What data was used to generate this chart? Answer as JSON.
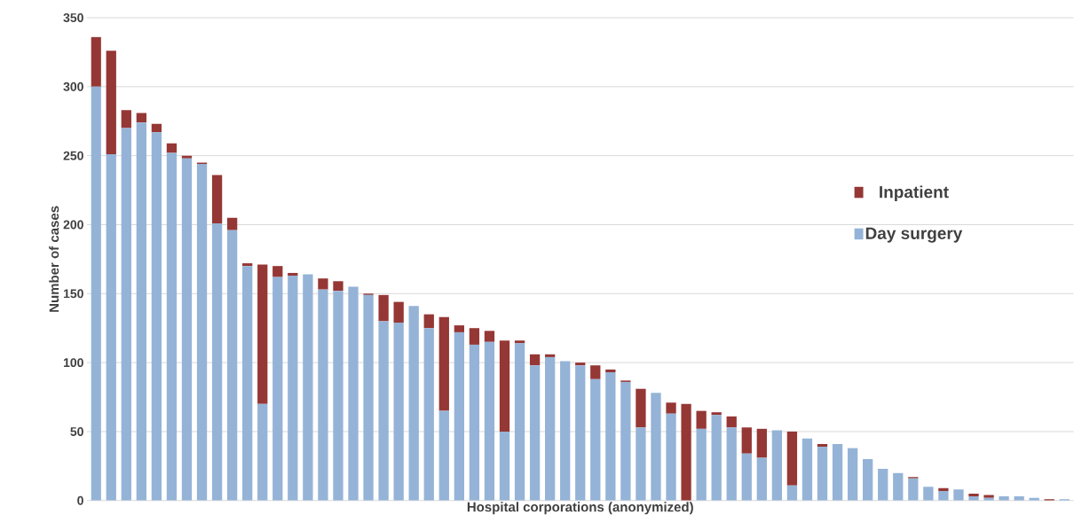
{
  "chart_data": {
    "type": "bar",
    "stacked": true,
    "xlabel": "Hospital corporations (anonymized)",
    "ylabel": "Number of cases",
    "categories": [
      null,
      null,
      null,
      null,
      null,
      null,
      null,
      null,
      null,
      null,
      null,
      null,
      null,
      null,
      null,
      null,
      null,
      null,
      null,
      null,
      null,
      null,
      null,
      null,
      null,
      null,
      null,
      null,
      null,
      null,
      null,
      null,
      null,
      null,
      null,
      null,
      null,
      null,
      null,
      null,
      null,
      null,
      null,
      null,
      null,
      null,
      null,
      null,
      null,
      null,
      null,
      null,
      null,
      null,
      null,
      null,
      null,
      null,
      null,
      null,
      null,
      null,
      null,
      null,
      null
    ],
    "series": [
      {
        "name": "Day surgery",
        "color": "#95b3d7",
        "values": [
          300,
          251,
          270,
          274,
          267,
          252,
          248,
          244,
          201,
          196,
          170,
          70,
          162,
          163,
          164,
          153,
          152,
          155,
          149,
          130,
          129,
          141,
          125,
          65,
          122,
          113,
          115,
          50,
          114,
          98,
          104,
          101,
          98,
          88,
          93,
          86,
          53,
          78,
          63,
          0,
          52,
          62,
          53,
          34,
          31,
          51,
          11,
          45,
          39,
          41,
          38,
          30,
          23,
          20,
          16,
          10,
          7,
          8,
          3,
          2,
          3,
          3,
          2,
          0,
          1
        ]
      },
      {
        "name": "Inpatient",
        "color": "#953735",
        "values": [
          36,
          75,
          13,
          7,
          6,
          7,
          2,
          1,
          35,
          9,
          2,
          101,
          8,
          2,
          0,
          8,
          7,
          0,
          1,
          19,
          15,
          0,
          10,
          68,
          5,
          12,
          8,
          66,
          2,
          8,
          2,
          0,
          2,
          10,
          2,
          1,
          28,
          0,
          8,
          70,
          13,
          2,
          8,
          19,
          21,
          0,
          39,
          0,
          2,
          0,
          0,
          0,
          0,
          0,
          1,
          0,
          2,
          0,
          2,
          2,
          0,
          0,
          0,
          1,
          0
        ]
      }
    ],
    "ylim": [
      0,
      350
    ],
    "yticks": [
      0,
      50,
      100,
      150,
      200,
      250,
      300,
      350
    ],
    "grid": "y",
    "legend": "right"
  }
}
